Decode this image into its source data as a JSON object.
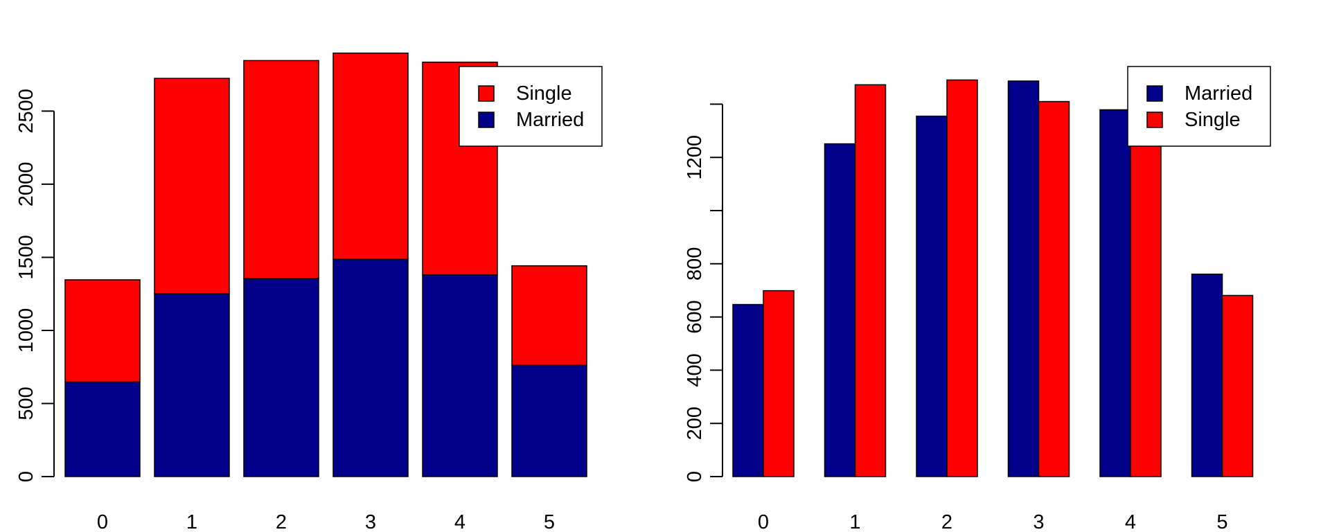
{
  "chart_data": [
    {
      "type": "bar",
      "stacked": true,
      "categories": [
        "0",
        "1",
        "2",
        "3",
        "4",
        "5"
      ],
      "series": [
        {
          "name": "Married",
          "color": "#00008B",
          "values": [
            647,
            1251,
            1355,
            1487,
            1379,
            761
          ]
        },
        {
          "name": "Single",
          "color": "#FF0000",
          "values": [
            699,
            1473,
            1491,
            1410,
            1456,
            681
          ]
        }
      ],
      "ylim": [
        0,
        2900
      ],
      "yticks": [
        0,
        500,
        1000,
        1500,
        2000,
        2500
      ],
      "title": "",
      "xlabel": "",
      "ylabel": "",
      "grid": false,
      "legend": {
        "position": "top-right",
        "entries": [
          "Single",
          "Married"
        ]
      }
    },
    {
      "type": "bar",
      "grouped": true,
      "categories": [
        "0",
        "1",
        "2",
        "3",
        "4",
        "5"
      ],
      "series": [
        {
          "name": "Married",
          "color": "#00008B",
          "values": [
            647,
            1251,
            1355,
            1487,
            1379,
            761
          ]
        },
        {
          "name": "Single",
          "color": "#FF0000",
          "values": [
            699,
            1473,
            1491,
            1410,
            1456,
            681
          ]
        }
      ],
      "ylim": [
        0,
        1500
      ],
      "yticks": [
        0,
        200,
        400,
        600,
        800,
        1000,
        1200,
        1400
      ],
      "yticklabels": [
        "0",
        "200",
        "400",
        "600",
        "800",
        "",
        "1200",
        ""
      ],
      "title": "",
      "xlabel": "",
      "ylabel": "",
      "grid": false,
      "legend": {
        "position": "top-right",
        "entries": [
          "Married",
          "Single"
        ]
      }
    }
  ]
}
